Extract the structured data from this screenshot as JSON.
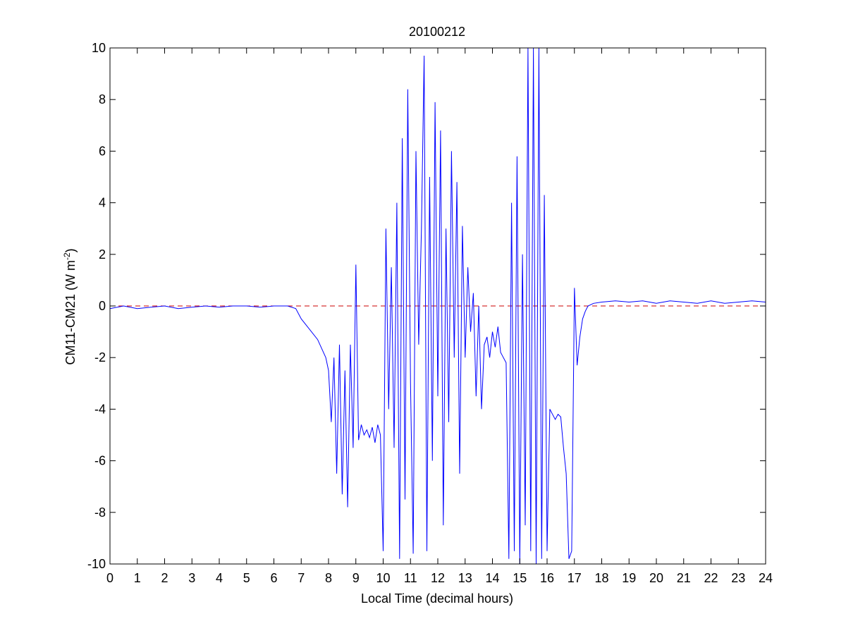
{
  "chart_data": {
    "type": "line",
    "title": "20100212",
    "xlabel": "Local Time (decimal hours)",
    "ylabel_main": "CM11-CM21 (W m",
    "ylabel_superscript": "-2",
    "ylabel_close": ")",
    "xlim": [
      0,
      24
    ],
    "ylim": [
      -10,
      10
    ],
    "x_ticks": [
      0,
      1,
      2,
      3,
      4,
      5,
      6,
      7,
      8,
      9,
      10,
      11,
      12,
      13,
      14,
      15,
      16,
      17,
      18,
      19,
      20,
      21,
      22,
      23,
      24
    ],
    "y_ticks": [
      -10,
      -8,
      -6,
      -4,
      -2,
      0,
      2,
      4,
      6,
      8,
      10
    ],
    "grid": false,
    "legend": "none",
    "reference_line": {
      "y": 0,
      "style": "dashed",
      "color": "#cc0000"
    },
    "series": [
      {
        "color": "#0000ff",
        "x": [
          0,
          0.5,
          1,
          1.5,
          2,
          2.5,
          3,
          3.5,
          4,
          4.5,
          5,
          5.5,
          6,
          6.5,
          6.8,
          7.0,
          7.3,
          7.6,
          7.9,
          8.0,
          8.1,
          8.2,
          8.3,
          8.4,
          8.5,
          8.6,
          8.7,
          8.8,
          8.9,
          9.0,
          9.1,
          9.2,
          9.3,
          9.4,
          9.5,
          9.6,
          9.7,
          9.8,
          9.9,
          10.0,
          10.1,
          10.2,
          10.3,
          10.4,
          10.5,
          10.6,
          10.7,
          10.8,
          10.9,
          11.0,
          11.1,
          11.2,
          11.3,
          11.4,
          11.5,
          11.6,
          11.7,
          11.8,
          11.9,
          12.0,
          12.1,
          12.2,
          12.3,
          12.4,
          12.5,
          12.6,
          12.7,
          12.8,
          12.9,
          13.0,
          13.1,
          13.2,
          13.3,
          13.4,
          13.5,
          13.6,
          13.7,
          13.8,
          13.9,
          14.0,
          14.1,
          14.2,
          14.3,
          14.4,
          14.5,
          14.6,
          14.7,
          14.8,
          14.9,
          15.0,
          15.1,
          15.2,
          15.3,
          15.4,
          15.5,
          15.6,
          15.7,
          15.8,
          15.9,
          16.0,
          16.1,
          16.2,
          16.3,
          16.4,
          16.5,
          16.6,
          16.7,
          16.8,
          16.9,
          17.0,
          17.1,
          17.2,
          17.3,
          17.4,
          17.5,
          17.7,
          18.0,
          18.5,
          19,
          19.5,
          20,
          20.5,
          21,
          21.5,
          22,
          22.5,
          23,
          23.5,
          24
        ],
        "y": [
          -0.1,
          0.0,
          -0.1,
          -0.05,
          0.0,
          -0.1,
          -0.05,
          0.0,
          -0.05,
          0.0,
          0.0,
          -0.05,
          0.0,
          0.0,
          -0.1,
          -0.5,
          -0.9,
          -1.3,
          -2.0,
          -2.5,
          -4.5,
          -2.0,
          -6.5,
          -1.5,
          -7.3,
          -2.5,
          -7.8,
          -1.5,
          -5.5,
          1.6,
          -5.2,
          -4.6,
          -5.0,
          -4.8,
          -5.1,
          -4.7,
          -5.3,
          -4.6,
          -5.0,
          -9.5,
          3.0,
          -4.0,
          1.5,
          -5.5,
          4.0,
          -9.8,
          6.5,
          -7.5,
          8.4,
          -3.0,
          -9.6,
          6.0,
          -1.5,
          3.0,
          9.7,
          -9.5,
          5.0,
          -6.0,
          7.9,
          -3.5,
          6.8,
          -8.5,
          3.0,
          -4.5,
          6.0,
          -2.0,
          4.8,
          -6.5,
          3.1,
          -2.0,
          1.5,
          -1.0,
          0.5,
          -3.5,
          0.0,
          -4.0,
          -1.5,
          -1.2,
          -2.0,
          -1.0,
          -1.6,
          -0.8,
          -1.8,
          -2.0,
          -2.2,
          -9.8,
          4.0,
          -9.5,
          5.8,
          -10.0,
          2.0,
          -8.5,
          10.0,
          -9.5,
          10.0,
          -10.0,
          10.0,
          -9.8,
          4.3,
          -9.5,
          -4.0,
          -4.2,
          -4.4,
          -4.2,
          -4.3,
          -5.5,
          -6.5,
          -9.8,
          -9.5,
          0.7,
          -2.3,
          -1.2,
          -0.5,
          -0.2,
          0.0,
          0.1,
          0.15,
          0.2,
          0.15,
          0.2,
          0.1,
          0.2,
          0.15,
          0.1,
          0.2,
          0.1,
          0.15,
          0.2,
          0.15
        ]
      }
    ]
  }
}
